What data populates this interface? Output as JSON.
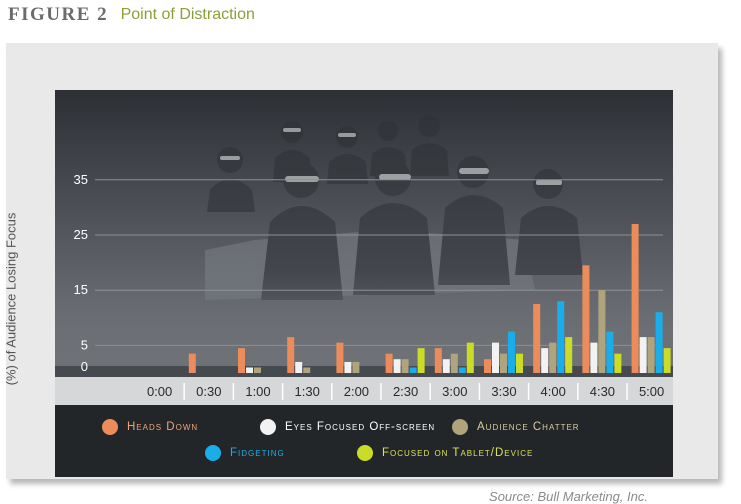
{
  "header": {
    "figure_label": "FIGURE 2",
    "title": "Point of Distraction"
  },
  "source": "Source: Bull Marketing, Inc.",
  "chart_data": {
    "type": "bar",
    "ylabel": "(%) of Audience Losing Focus",
    "ylim": [
      0,
      35
    ],
    "yticks": [
      0,
      5,
      15,
      25,
      35
    ],
    "categories": [
      "0:00",
      "0:30",
      "1:00",
      "1:30",
      "2:00",
      "2:30",
      "3:00",
      "3:30",
      "4:00",
      "4:30",
      "5:00"
    ],
    "series": [
      {
        "name": "Heads Down",
        "color": "#ec8c5a",
        "values": [
          0,
          3.5,
          4.5,
          6.5,
          5.5,
          3.5,
          4.5,
          2.5,
          12.5,
          19.5,
          27
        ]
      },
      {
        "name": "Eyes Focused Off-screen",
        "color": "#f2f2f2",
        "values": [
          0,
          0,
          1,
          2,
          2,
          2.5,
          2.5,
          5.5,
          4.5,
          5.5,
          6.5
        ]
      },
      {
        "name": "Audience Chatter",
        "color": "#b0a47c",
        "values": [
          0,
          0,
          1,
          1,
          2,
          2.5,
          3.5,
          3.5,
          5.5,
          15,
          6.5
        ]
      },
      {
        "name": "Fidgeting",
        "color": "#19aeea",
        "values": [
          0,
          0,
          0,
          0,
          0,
          1,
          1,
          7.5,
          13,
          7.5,
          11
        ]
      },
      {
        "name": "Focused on Tablet/Device",
        "color": "#cbdc28",
        "values": [
          0,
          0,
          0,
          0,
          0,
          4.5,
          5.5,
          3.5,
          6.5,
          3.5,
          4.5
        ]
      }
    ],
    "grid": true,
    "legend_position": "bottom"
  }
}
